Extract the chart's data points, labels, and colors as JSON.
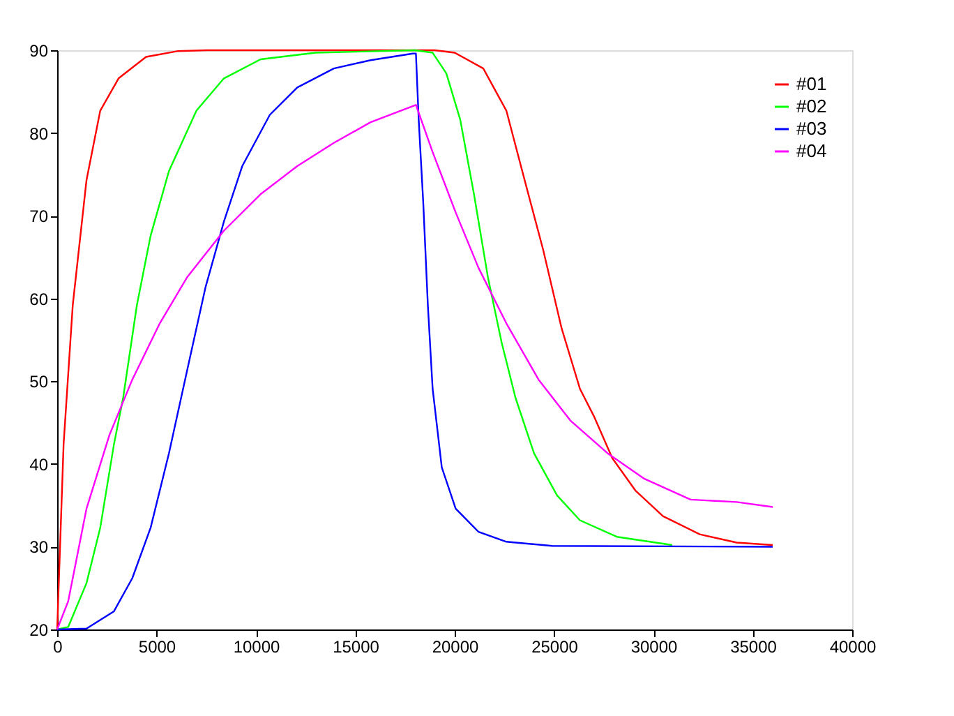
{
  "chart_data": {
    "type": "line",
    "xlim": [
      0,
      40000
    ],
    "ylim": [
      20,
      90
    ],
    "xticks": [
      0,
      5000,
      10000,
      15000,
      20000,
      25000,
      30000,
      35000,
      40000
    ],
    "yticks": [
      20,
      30,
      40,
      50,
      60,
      70,
      80,
      90
    ],
    "grid": false,
    "legend": "top right",
    "marker": "none",
    "line_style": "solid",
    "series": [
      {
        "name": "#01",
        "color": "#ff0000",
        "x": [
          0,
          323,
          784,
          1475,
          2167,
          3089,
          4472,
          6085,
          7500,
          12000,
          19000,
          20000,
          21440,
          22600,
          23520,
          24450,
          25380,
          26300,
          27000,
          27930,
          29090,
          30480,
          32330,
          34190,
          36000
        ],
        "values": [
          20,
          42.4,
          59.2,
          74.3,
          82.7,
          86.6,
          89.2,
          89.9,
          90,
          90,
          90,
          89.7,
          87.8,
          82.7,
          74.3,
          65.9,
          56.4,
          49.1,
          45.8,
          40.7,
          36.8,
          33.7,
          31.5,
          30.5,
          30.2
        ]
      },
      {
        "name": "#02",
        "color": "#00ff00",
        "x": [
          0,
          553,
          1475,
          2167,
          2858,
          3319,
          4011,
          4702,
          5624,
          7007,
          8390,
          10234,
          13000,
          18000,
          18890,
          19580,
          20280,
          20970,
          21670,
          22360,
          23060,
          23990,
          25150,
          26300,
          28160,
          30940
        ],
        "values": [
          20,
          20.3,
          25.6,
          32.3,
          42.4,
          48,
          59.2,
          67.6,
          75.4,
          82.7,
          86.6,
          88.9,
          89.7,
          90,
          89.7,
          87.2,
          81.6,
          72.6,
          62.6,
          54.7,
          48,
          41.3,
          36.2,
          33.2,
          31.2,
          30.2
        ]
      },
      {
        "name": "#03",
        "color": "#0000ff",
        "x": [
          0,
          1475,
          2858,
          3780,
          4702,
          5624,
          6546,
          7468,
          8390,
          9312,
          10700,
          12080,
          13920,
          15770,
          17890,
          18050,
          18190,
          18420,
          18650,
          18890,
          19350,
          20050,
          21200,
          22600,
          24910,
          36000
        ],
        "values": [
          20,
          20.1,
          22.2,
          26.2,
          32.3,
          41.3,
          51.4,
          61.4,
          69.3,
          76,
          82.2,
          85.5,
          87.8,
          88.8,
          89.6,
          89.6,
          81.6,
          71.5,
          59.2,
          49.1,
          39.6,
          34.6,
          31.8,
          30.6,
          30.1,
          30
        ]
      },
      {
        "name": "#04",
        "color": "#ff00ff",
        "x": [
          0,
          553,
          1475,
          2628,
          3780,
          5163,
          6546,
          8390,
          10234,
          12080,
          13920,
          15770,
          18050,
          18890,
          20050,
          21200,
          22600,
          24220,
          25840,
          27690,
          29550,
          31870,
          34190,
          36000
        ],
        "values": [
          20,
          23.4,
          34.6,
          43.5,
          50.2,
          57,
          62.6,
          68.2,
          72.6,
          76,
          78.8,
          81.3,
          83.4,
          77.7,
          70.4,
          63.7,
          57,
          50.2,
          45.2,
          41.3,
          38.2,
          35.7,
          35.4,
          34.8
        ]
      }
    ]
  }
}
